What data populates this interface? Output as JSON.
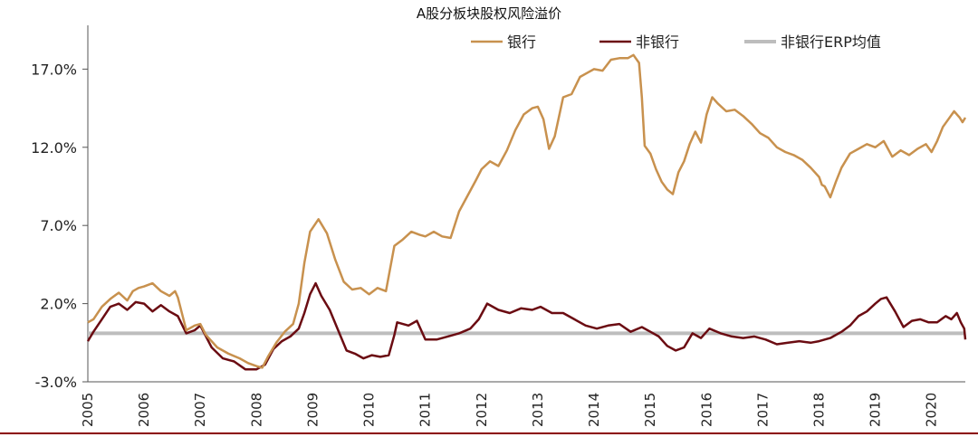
{
  "chart_data": {
    "type": "line",
    "title": "A股分板块股权风险溢价",
    "xlabel": "",
    "ylabel": "",
    "xlim": [
      2005.0,
      2020.6
    ],
    "ylim": [
      -3.0,
      19.8
    ],
    "yticks": [
      -3.0,
      2.0,
      7.0,
      12.0,
      17.0
    ],
    "ytick_labels": [
      "-3.0%",
      "2.0%",
      "7.0%",
      "12.0%",
      "17.0%"
    ],
    "xtick_labels": [
      "2005",
      "2006",
      "2007",
      "2008",
      "2009",
      "2010",
      "2011",
      "2012",
      "2013",
      "2014",
      "2015",
      "2016",
      "2017",
      "2018",
      "2019",
      "2020"
    ],
    "legend_position": "top-right",
    "colors": {
      "bank": "#c8914e",
      "nonbank": "#6b0c12",
      "erp": "#bdbdbd",
      "axis": "#555555",
      "frame": "#8b0000"
    },
    "series": [
      {
        "name": "银行",
        "x": [
          2005.0,
          2005.1,
          2005.25,
          2005.4,
          2005.55,
          2005.7,
          2005.8,
          2005.9,
          2006.0,
          2006.15,
          2006.3,
          2006.45,
          2006.55,
          2006.6,
          2006.75,
          2006.9,
          2007.0,
          2007.1,
          2007.3,
          2007.5,
          2007.7,
          2007.85,
          2008.0,
          2008.1,
          2008.2,
          2008.35,
          2008.5,
          2008.65,
          2008.75,
          2008.85,
          2008.95,
          2009.1,
          2009.25,
          2009.4,
          2009.55,
          2009.7,
          2009.85,
          2010.0,
          2010.15,
          2010.3,
          2010.45,
          2010.6,
          2010.75,
          2010.9,
          2011.0,
          2011.15,
          2011.3,
          2011.45,
          2011.6,
          2011.75,
          2011.9,
          2012.0,
          2012.15,
          2012.3,
          2012.45,
          2012.6,
          2012.75,
          2012.9,
          2013.0,
          2013.1,
          2013.2,
          2013.3,
          2013.45,
          2013.6,
          2013.75,
          2013.9,
          2014.0,
          2014.15,
          2014.3,
          2014.45,
          2014.6,
          2014.7,
          2014.8,
          2014.85,
          2014.9,
          2015.0,
          2015.1,
          2015.2,
          2015.3,
          2015.4,
          2015.5,
          2015.6,
          2015.7,
          2015.8,
          2015.9,
          2016.0,
          2016.1,
          2016.2,
          2016.35,
          2016.5,
          2016.65,
          2016.8,
          2016.95,
          2017.1,
          2017.25,
          2017.4,
          2017.55,
          2017.7,
          2017.85,
          2018.0,
          2018.05,
          2018.1,
          2018.2,
          2018.3,
          2018.4,
          2018.55,
          2018.7,
          2018.85,
          2019.0,
          2019.15,
          2019.3,
          2019.45,
          2019.6,
          2019.75,
          2019.9,
          2020.0,
          2020.1,
          2020.2,
          2020.3,
          2020.4,
          2020.5,
          2020.55,
          2020.6
        ],
        "values": [
          0.8,
          1.0,
          1.8,
          2.3,
          2.7,
          2.2,
          2.8,
          3.0,
          3.1,
          3.3,
          2.8,
          2.5,
          2.8,
          2.4,
          0.3,
          0.6,
          0.7,
          0.0,
          -0.8,
          -1.2,
          -1.5,
          -1.8,
          -2.0,
          -2.1,
          -1.4,
          -0.5,
          0.2,
          0.7,
          2.0,
          4.6,
          6.6,
          7.4,
          6.5,
          4.8,
          3.4,
          2.9,
          3.0,
          2.6,
          3.0,
          2.8,
          5.7,
          6.1,
          6.6,
          6.4,
          6.3,
          6.6,
          6.3,
          6.2,
          7.9,
          8.9,
          9.9,
          10.6,
          11.1,
          10.8,
          11.8,
          13.1,
          14.1,
          14.5,
          14.6,
          13.8,
          11.9,
          12.7,
          15.2,
          15.4,
          16.5,
          16.8,
          17.0,
          16.9,
          17.6,
          17.7,
          17.7,
          17.9,
          17.4,
          15.2,
          12.1,
          11.6,
          10.6,
          9.8,
          9.3,
          9.0,
          10.4,
          11.1,
          12.2,
          13.0,
          12.3,
          14.1,
          15.2,
          14.8,
          14.3,
          14.4,
          14.0,
          13.5,
          12.9,
          12.6,
          12.0,
          11.7,
          11.5,
          11.2,
          10.7,
          10.1,
          9.6,
          9.5,
          8.8,
          9.8,
          10.7,
          11.6,
          11.9,
          12.2,
          12.0,
          12.4,
          11.4,
          11.8,
          11.5,
          11.9,
          12.2,
          11.7,
          12.4,
          13.3,
          13.8,
          14.3,
          13.9,
          13.6,
          13.9
        ]
      },
      {
        "name": "非银行",
        "x": [
          2005.0,
          2005.1,
          2005.25,
          2005.4,
          2005.55,
          2005.7,
          2005.85,
          2006.0,
          2006.15,
          2006.3,
          2006.45,
          2006.6,
          2006.75,
          2006.9,
          2007.0,
          2007.2,
          2007.4,
          2007.6,
          2007.8,
          2008.0,
          2008.15,
          2008.3,
          2008.45,
          2008.6,
          2008.75,
          2008.85,
          2008.95,
          2009.05,
          2009.15,
          2009.3,
          2009.45,
          2009.6,
          2009.75,
          2009.9,
          2010.05,
          2010.2,
          2010.35,
          2010.45,
          2010.5,
          2010.7,
          2010.85,
          2011.0,
          2011.2,
          2011.4,
          2011.6,
          2011.8,
          2011.95,
          2012.1,
          2012.3,
          2012.5,
          2012.7,
          2012.9,
          2013.05,
          2013.25,
          2013.45,
          2013.65,
          2013.85,
          2014.05,
          2014.25,
          2014.45,
          2014.65,
          2014.85,
          2015.0,
          2015.15,
          2015.3,
          2015.45,
          2015.6,
          2015.75,
          2015.9,
          2016.05,
          2016.25,
          2016.45,
          2016.65,
          2016.85,
          2017.05,
          2017.25,
          2017.45,
          2017.65,
          2017.85,
          2018.0,
          2018.2,
          2018.4,
          2018.55,
          2018.7,
          2018.85,
          2019.0,
          2019.1,
          2019.2,
          2019.35,
          2019.5,
          2019.65,
          2019.8,
          2019.95,
          2020.1,
          2020.25,
          2020.35,
          2020.45,
          2020.52,
          2020.58,
          2020.6
        ],
        "values": [
          -0.4,
          0.2,
          1.0,
          1.8,
          2.0,
          1.6,
          2.1,
          2.0,
          1.5,
          1.9,
          1.5,
          1.2,
          0.1,
          0.3,
          0.6,
          -0.8,
          -1.5,
          -1.7,
          -2.2,
          -2.2,
          -1.9,
          -0.9,
          -0.4,
          -0.1,
          0.4,
          1.4,
          2.6,
          3.3,
          2.5,
          1.6,
          0.3,
          -1.0,
          -1.2,
          -1.5,
          -1.3,
          -1.4,
          -1.3,
          0.0,
          0.8,
          0.6,
          0.9,
          -0.3,
          -0.3,
          -0.1,
          0.1,
          0.4,
          1.0,
          2.0,
          1.6,
          1.4,
          1.7,
          1.6,
          1.8,
          1.4,
          1.4,
          1.0,
          0.6,
          0.4,
          0.6,
          0.7,
          0.2,
          0.5,
          0.2,
          -0.1,
          -0.7,
          -1.0,
          -0.8,
          0.1,
          -0.2,
          0.4,
          0.1,
          -0.1,
          -0.2,
          -0.1,
          -0.3,
          -0.6,
          -0.5,
          -0.4,
          -0.5,
          -0.4,
          -0.2,
          0.2,
          0.6,
          1.2,
          1.5,
          2.0,
          2.3,
          2.4,
          1.5,
          0.5,
          0.9,
          1.0,
          0.8,
          0.8,
          1.2,
          1.0,
          1.4,
          0.8,
          0.4,
          -0.3
        ]
      },
      {
        "name": "非银行ERP均值",
        "x": [
          2005.0,
          2020.6
        ],
        "values": [
          0.1,
          0.1
        ]
      }
    ]
  }
}
